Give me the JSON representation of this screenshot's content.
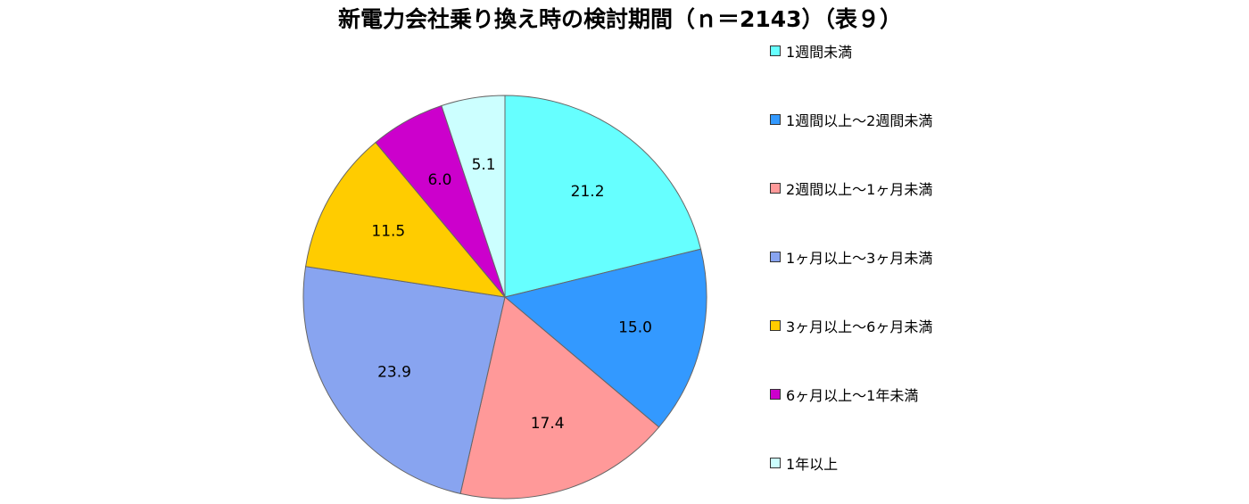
{
  "chart_data": {
    "type": "pie",
    "title": "新電力会社乗り換え時の検討期間（ｎ＝2143）（表９）",
    "start_angle": "12 o'clock",
    "direction": "clockwise",
    "legend_position": "right",
    "slices": [
      {
        "label": "1週間未満",
        "value": 21.2,
        "color": "#66ffff"
      },
      {
        "label": "1週間以上～2週間未満",
        "value": 15.0,
        "color": "#3399ff"
      },
      {
        "label": "2週間以上～1ヶ月未満",
        "value": 17.4,
        "color": "#ff9999"
      },
      {
        "label": "1ヶ月以上～3ヶ月未満",
        "value": 23.9,
        "color": "#88a4f0"
      },
      {
        "label": "3ヶ月以上～6ヶ月未満",
        "value": 11.5,
        "color": "#ffcc00"
      },
      {
        "label": "6ヶ月以上～1年未満",
        "value": 6.0,
        "color": "#cc00cc"
      },
      {
        "label": "1年以上",
        "value": 5.1,
        "color": "#ccffff"
      }
    ]
  }
}
